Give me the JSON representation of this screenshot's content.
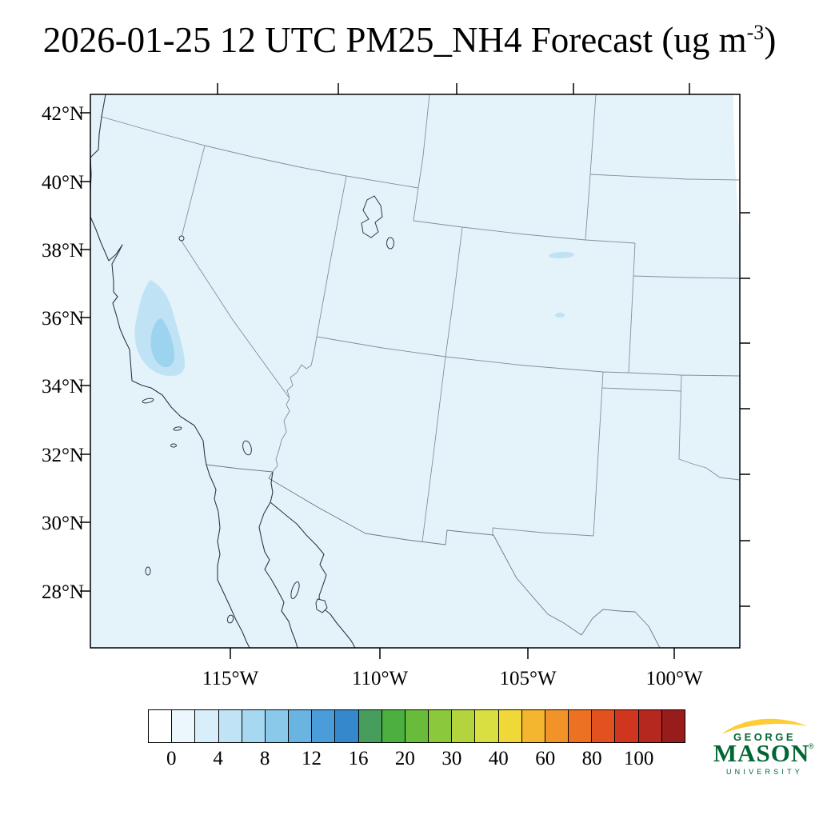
{
  "title": {
    "prefix": "2026-01-25 12 UTC PM25_NH4 Forecast (ug m",
    "superscript": "-3",
    "suffix": ")"
  },
  "map": {
    "lat_labels": [
      "42°N",
      "40°N",
      "38°N",
      "36°N",
      "34°N",
      "32°N",
      "30°N",
      "28°N"
    ],
    "lon_labels": [
      "115°W",
      "110°W",
      "105°W",
      "100°W"
    ],
    "background_fill_color": "#e4f2fa",
    "patch_color_light": "#bfe2f4",
    "patch_color_medium": "#9cd3ee",
    "state_border_color": "#7f92a0",
    "coastline_color": "#2a3a46"
  },
  "colorbar": {
    "values": [
      "0",
      "4",
      "8",
      "12",
      "16",
      "20",
      "30",
      "40",
      "60",
      "80",
      "100"
    ],
    "colors": [
      "#ffffff",
      "#ebf7fd",
      "#d8eefa",
      "#c0e4f6",
      "#a6d8f1",
      "#8ac9ea",
      "#6ab4e2",
      "#4a9dd8",
      "#3488cb",
      "#469d5c",
      "#4caf3f",
      "#68bc39",
      "#8cc83b",
      "#b4d43e",
      "#d9df41",
      "#f0d838",
      "#f4b52f",
      "#f19329",
      "#ec7123",
      "#e3511f",
      "#d0361f",
      "#b52820",
      "#991c1d"
    ]
  },
  "logo": {
    "line1": "GEORGE",
    "line2": "MASON",
    "registered": "®",
    "line3": "UNIVERSITY",
    "green": "#006633",
    "gold": "#ffcc33"
  },
  "chart_data": {
    "type": "heatmap",
    "title": "2026-01-25 12 UTC PM25_NH4 Forecast (ug m-3)",
    "variable": "PM25_NH4",
    "units": "ug m-3",
    "valid_time": "2026-01-25 12 UTC",
    "projection": "Lambert conformal over southwestern United States and northern Mexico",
    "x_tick_labels": [
      "115°W",
      "110°W",
      "105°W",
      "100°W"
    ],
    "y_tick_labels": [
      "42°N",
      "40°N",
      "38°N",
      "36°N",
      "34°N",
      "32°N",
      "30°N",
      "28°N"
    ],
    "colorbar_levels": [
      0,
      4,
      8,
      12,
      16,
      20,
      30,
      40,
      60,
      80,
      100
    ],
    "legend_position": "bottom",
    "grid": false,
    "field_summary": [
      {
        "region": "entire visible domain background",
        "approx_value": "0-2"
      },
      {
        "region": "California San Joaquin Valley plume",
        "approx_value": "2-6"
      },
      {
        "region": "small slivers in central Colorado",
        "approx_value": "2-4"
      },
      {
        "region": "thin strip at top right map edge",
        "approx_value": "0 (white)"
      }
    ]
  }
}
